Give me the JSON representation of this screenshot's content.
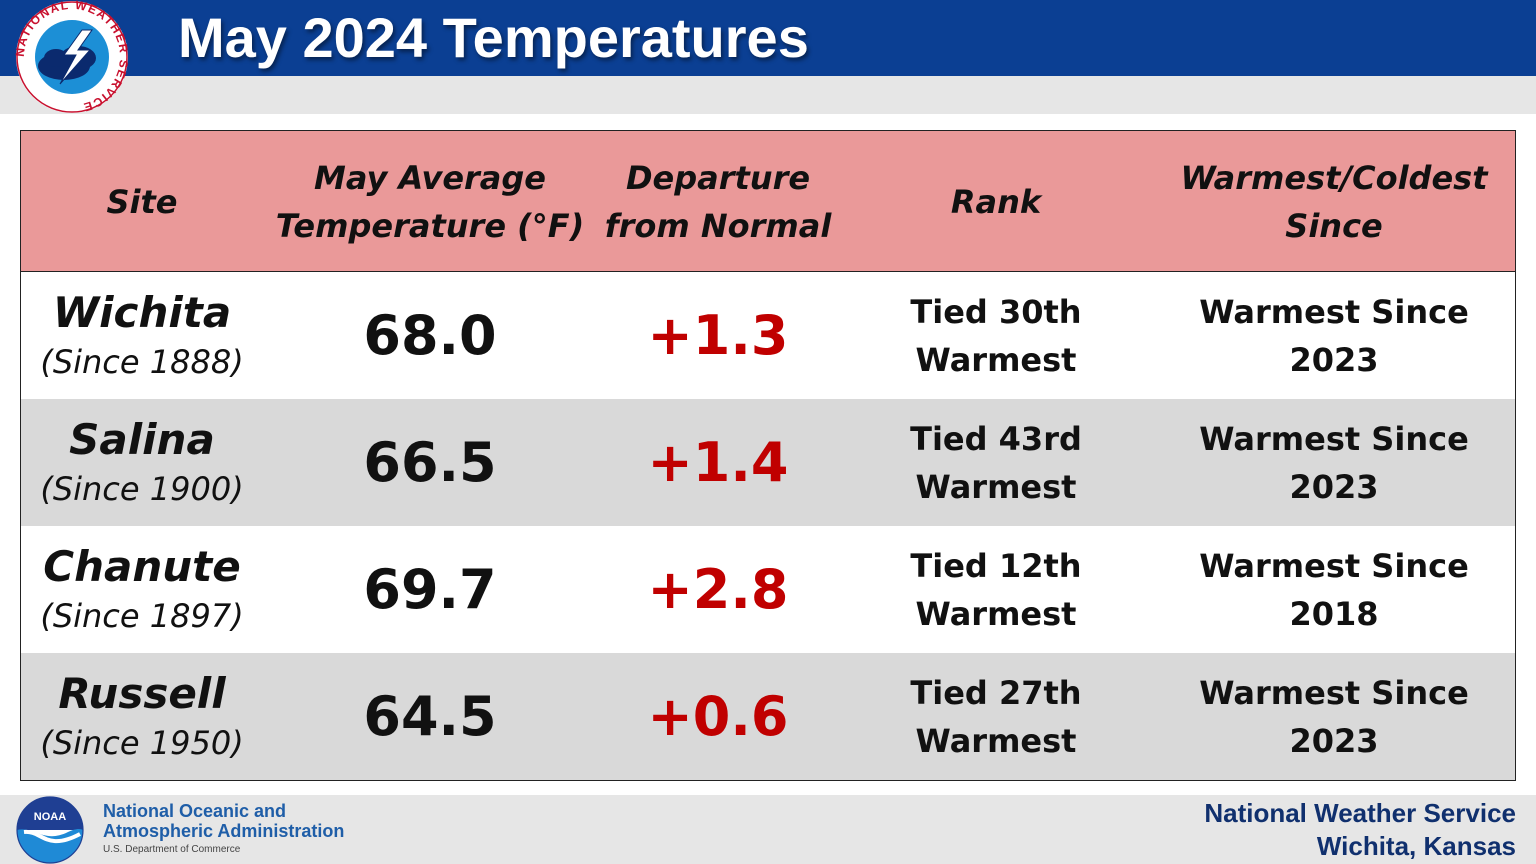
{
  "title": "May 2024 Temperatures",
  "logo": {
    "ring_text": "NATIONAL WEATHER SERVICE",
    "icon": "nws-logo"
  },
  "table": {
    "headers": {
      "site": "Site",
      "avg_line1": "May Average",
      "avg_line2": "Temperature (°F)",
      "dep_line1": "Departure",
      "dep_line2": "from Normal",
      "rank": "Rank",
      "since_line1": "Warmest/Coldest",
      "since_line2": "Since"
    },
    "rows": [
      {
        "site": "Wichita",
        "since_record": "(Since 1888)",
        "avg": "68.0",
        "departure": "+1.3",
        "rank_line1": "Tied 30th",
        "rank_line2": "Warmest",
        "since_line1": "Warmest Since",
        "since_line2": "2023"
      },
      {
        "site": "Salina",
        "since_record": "(Since 1900)",
        "avg": "66.5",
        "departure": "+1.4",
        "rank_line1": "Tied 43rd",
        "rank_line2": "Warmest",
        "since_line1": "Warmest Since",
        "since_line2": "2023"
      },
      {
        "site": "Chanute",
        "since_record": "(Since 1897)",
        "avg": "69.7",
        "departure": "+2.8",
        "rank_line1": "Tied 12th",
        "rank_line2": "Warmest",
        "since_line1": "Warmest Since",
        "since_line2": "2018"
      },
      {
        "site": "Russell",
        "since_record": "(Since 1950)",
        "avg": "64.5",
        "departure": "+0.6",
        "rank_line1": "Tied 27th",
        "rank_line2": "Warmest",
        "since_line1": "Warmest Since",
        "since_line2": "2023"
      }
    ]
  },
  "footer": {
    "noaa_line1": "National Oceanic and",
    "noaa_line2": "Atmospheric Administration",
    "noaa_line3": "U.S. Department of Commerce",
    "noaa_logo_text": "NOAA",
    "nws_line1": "National Weather Service",
    "nws_line2": "Wichita, Kansas"
  },
  "colors": {
    "header_blue": "#0b3f93",
    "table_header_pink": "#ea9999",
    "departure_red": "#c00000",
    "alt_row_gray": "#d9d9d9"
  }
}
